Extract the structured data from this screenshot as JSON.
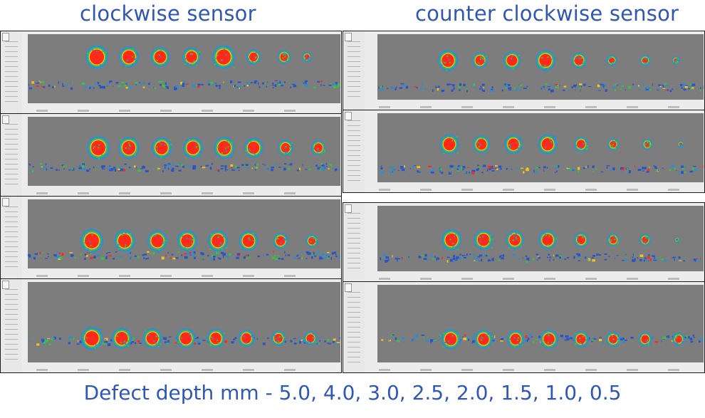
{
  "headers": {
    "clockwise": "clockwise sensor",
    "counter_clockwise": "counter clockwise sensor"
  },
  "footer": "Defect depth mm - 5.0, 4.0, 3.0, 2.5, 2.0, 1.5, 1.0, 0.5",
  "colors": {
    "text": "#2f57b3",
    "background_scan": "#7d7d7d",
    "defect_core": "#ff2a1a",
    "defect_ring_1": "#f4c21a",
    "defect_ring_2": "#39c04a",
    "defect_ring_3": "#2a8fd0",
    "noise_blue": "#2a55c8"
  }
}
